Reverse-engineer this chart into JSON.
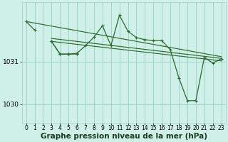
{
  "bg_color": "#cff0e8",
  "grid_color": "#9ed4cb",
  "line_color": "#2d6a2d",
  "xlabel": "Graphe pression niveau de la mer (hPa)",
  "xlabel_fontsize": 7.5,
  "ylim": [
    1029.55,
    1032.4
  ],
  "xlim": [
    -0.5,
    23.5
  ],
  "yticks": [
    1030,
    1031
  ],
  "xticks": [
    0,
    1,
    2,
    3,
    4,
    5,
    6,
    7,
    8,
    9,
    10,
    11,
    12,
    13,
    14,
    15,
    16,
    17,
    18,
    19,
    20,
    21,
    22,
    23
  ],
  "main_y": [
    1031.95,
    1031.75,
    null,
    1031.48,
    1031.18,
    1031.18,
    1031.2,
    1031.38,
    1031.58,
    1031.85,
    1031.38,
    1032.1,
    1031.72,
    1031.57,
    1031.52,
    1031.5,
    1031.5,
    1031.28,
    1030.62,
    1030.08,
    1030.08,
    1031.1,
    1030.97,
    1031.07
  ],
  "trend_line1": [
    [
      0,
      1031.95
    ],
    [
      23,
      1031.12
    ]
  ],
  "trend_line2": [
    [
      3,
      1031.55
    ],
    [
      23,
      1031.08
    ]
  ],
  "trend_line3": [
    [
      3,
      1031.48
    ],
    [
      23,
      1031.02
    ]
  ],
  "extra_segment": [
    [
      3,
      1031.48
    ],
    [
      4,
      1031.18
    ],
    [
      5,
      1031.18
    ],
    [
      6,
      1031.18
    ]
  ]
}
